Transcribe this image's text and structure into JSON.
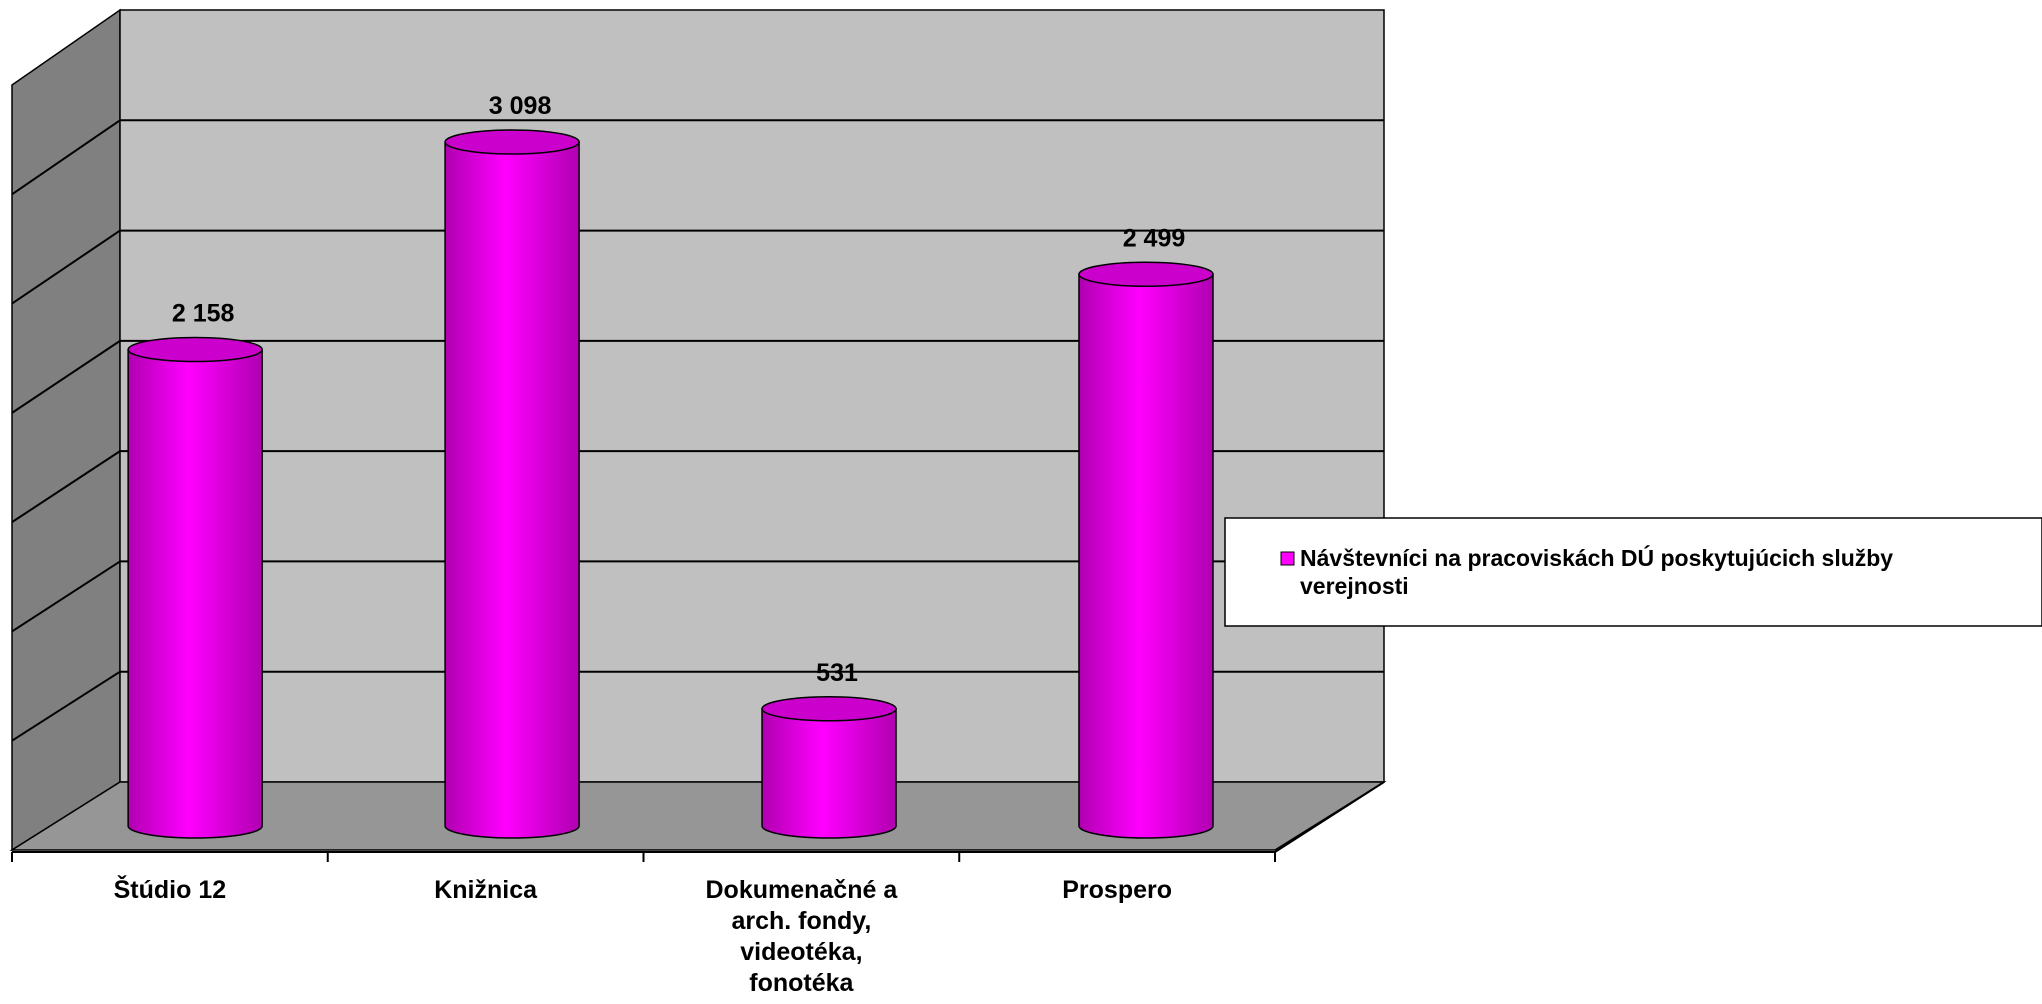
{
  "chart_data": {
    "type": "bar",
    "style": "3d-cylinder",
    "categories": [
      "Štúdio 12",
      "Knižnica",
      "Dokumenačné a arch. fondy, videotéka, fonotéka",
      "Prospero"
    ],
    "category_lines": [
      [
        "Štúdio 12"
      ],
      [
        "Knižnica"
      ],
      [
        "Dokumenačné a",
        "arch. fondy,",
        "videotéka,",
        "fonotéka"
      ],
      [
        "Prospero"
      ]
    ],
    "series": [
      {
        "name": "Návštevníci na pracoviskách DÚ poskytujúcich služby verejnosti",
        "values": [
          2158,
          3098,
          531,
          2499
        ],
        "data_labels": [
          "2 158",
          "3 098",
          "531",
          "2 499"
        ]
      }
    ],
    "legend_lines": [
      "Návštevníci na pracoviskách DÚ poskytujúcich služby",
      "verejnosti"
    ],
    "ylim": [
      0,
      3500
    ],
    "ytick_step": 500,
    "grid": true,
    "legend_position": "right",
    "colors": {
      "bar_face": "#ff00ff",
      "bar_top": "#cc00cc",
      "bar_dark": "#b000b0",
      "back_wall": "#c0c0c0",
      "side_wall": "#808080",
      "floor": "#969696",
      "gridline": "#000000",
      "legend_swatch": "#ff00ff"
    }
  }
}
